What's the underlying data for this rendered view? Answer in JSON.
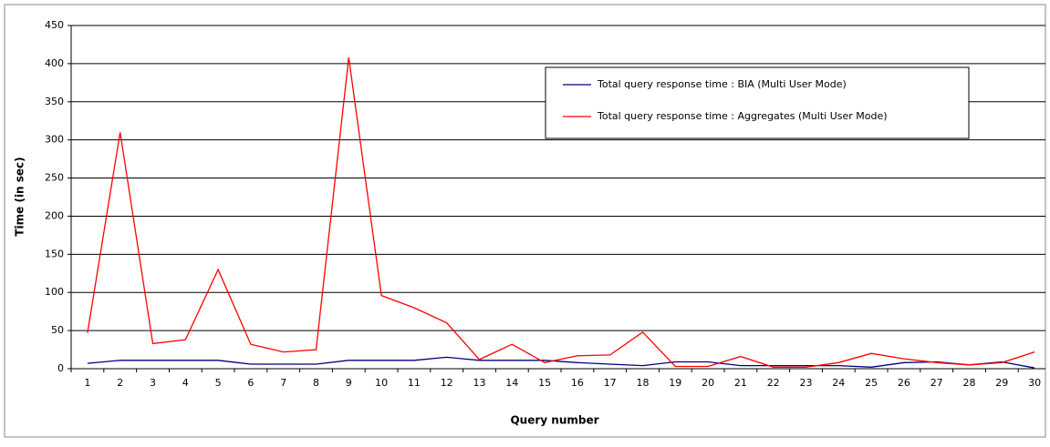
{
  "chart_data": {
    "type": "line",
    "xlabel": "Query number",
    "ylabel": "Time (in sec)",
    "categories": [
      "1",
      "2",
      "3",
      "4",
      "5",
      "6",
      "7",
      "8",
      "9",
      "10",
      "11",
      "12",
      "13",
      "14",
      "15",
      "16",
      "17",
      "18",
      "19",
      "20",
      "21",
      "22",
      "23",
      "24",
      "25",
      "26",
      "27",
      "28",
      "29",
      "30"
    ],
    "series": [
      {
        "name": "Total query response time : BIA (Multi User Mode)",
        "color": "#000080",
        "values": [
          7,
          11,
          11,
          11,
          11,
          6,
          6,
          6,
          11,
          11,
          11,
          15,
          11,
          11,
          11,
          8,
          6,
          4,
          9,
          9,
          4,
          4,
          4,
          4,
          2,
          8,
          9,
          5,
          9,
          1
        ]
      },
      {
        "name": "Total query response time : Aggregates (Multi User Mode)",
        "color": "#ff0000",
        "values": [
          47,
          310,
          33,
          38,
          130,
          32,
          22,
          25,
          408,
          96,
          80,
          60,
          12,
          32,
          8,
          17,
          18,
          48,
          3,
          3,
          16,
          2,
          2,
          8,
          20,
          13,
          8,
          5,
          8,
          22
        ]
      }
    ],
    "ylim": [
      0,
      450
    ],
    "yticks": [
      0,
      50,
      100,
      150,
      200,
      250,
      300,
      350,
      400,
      450
    ],
    "grid": true,
    "legend": "top-right"
  }
}
